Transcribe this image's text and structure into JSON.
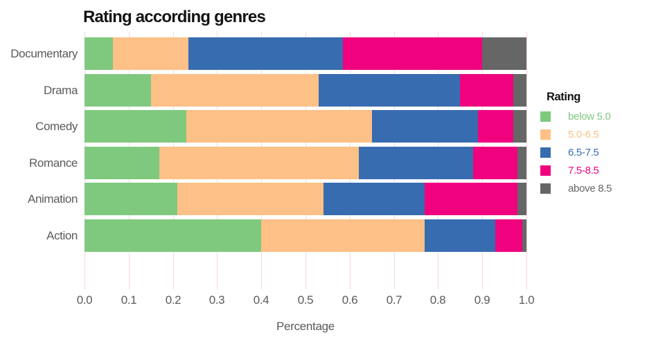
{
  "chart_data": {
    "type": "bar",
    "orientation": "horizontal",
    "stacked": true,
    "title": "Rating according genres",
    "xlabel": "Percentage",
    "ylabel": "",
    "categories": [
      "Documentary",
      "Drama",
      "Comedy",
      "Romance",
      "Animation",
      "Action"
    ],
    "series": [
      {
        "name": "below 5.0",
        "color": "#7fc97f",
        "values": [
          0.065,
          0.15,
          0.23,
          0.17,
          0.21,
          0.4
        ]
      },
      {
        "name": "5.0-6.5",
        "color": "#fdc086",
        "values": [
          0.17,
          0.38,
          0.42,
          0.45,
          0.33,
          0.37
        ]
      },
      {
        "name": "6.5-7.5",
        "color": "#386cb0",
        "values": [
          0.35,
          0.32,
          0.24,
          0.26,
          0.23,
          0.16
        ]
      },
      {
        "name": "7.5-8.5",
        "color": "#f0027f",
        "values": [
          0.315,
          0.12,
          0.08,
          0.1,
          0.21,
          0.06
        ]
      },
      {
        "name": "above 8.5",
        "color": "#666666",
        "values": [
          0.1,
          0.03,
          0.03,
          0.02,
          0.02,
          0.01
        ]
      }
    ],
    "xlim": [
      0.0,
      1.0
    ],
    "xticks": [
      "0.0",
      "0.1",
      "0.2",
      "0.3",
      "0.4",
      "0.5",
      "0.6",
      "0.7",
      "0.8",
      "0.9",
      "1.0"
    ],
    "grid": true,
    "gridline_color": "#f8d7de",
    "legend": {
      "title": "Rating",
      "position": "right"
    }
  }
}
